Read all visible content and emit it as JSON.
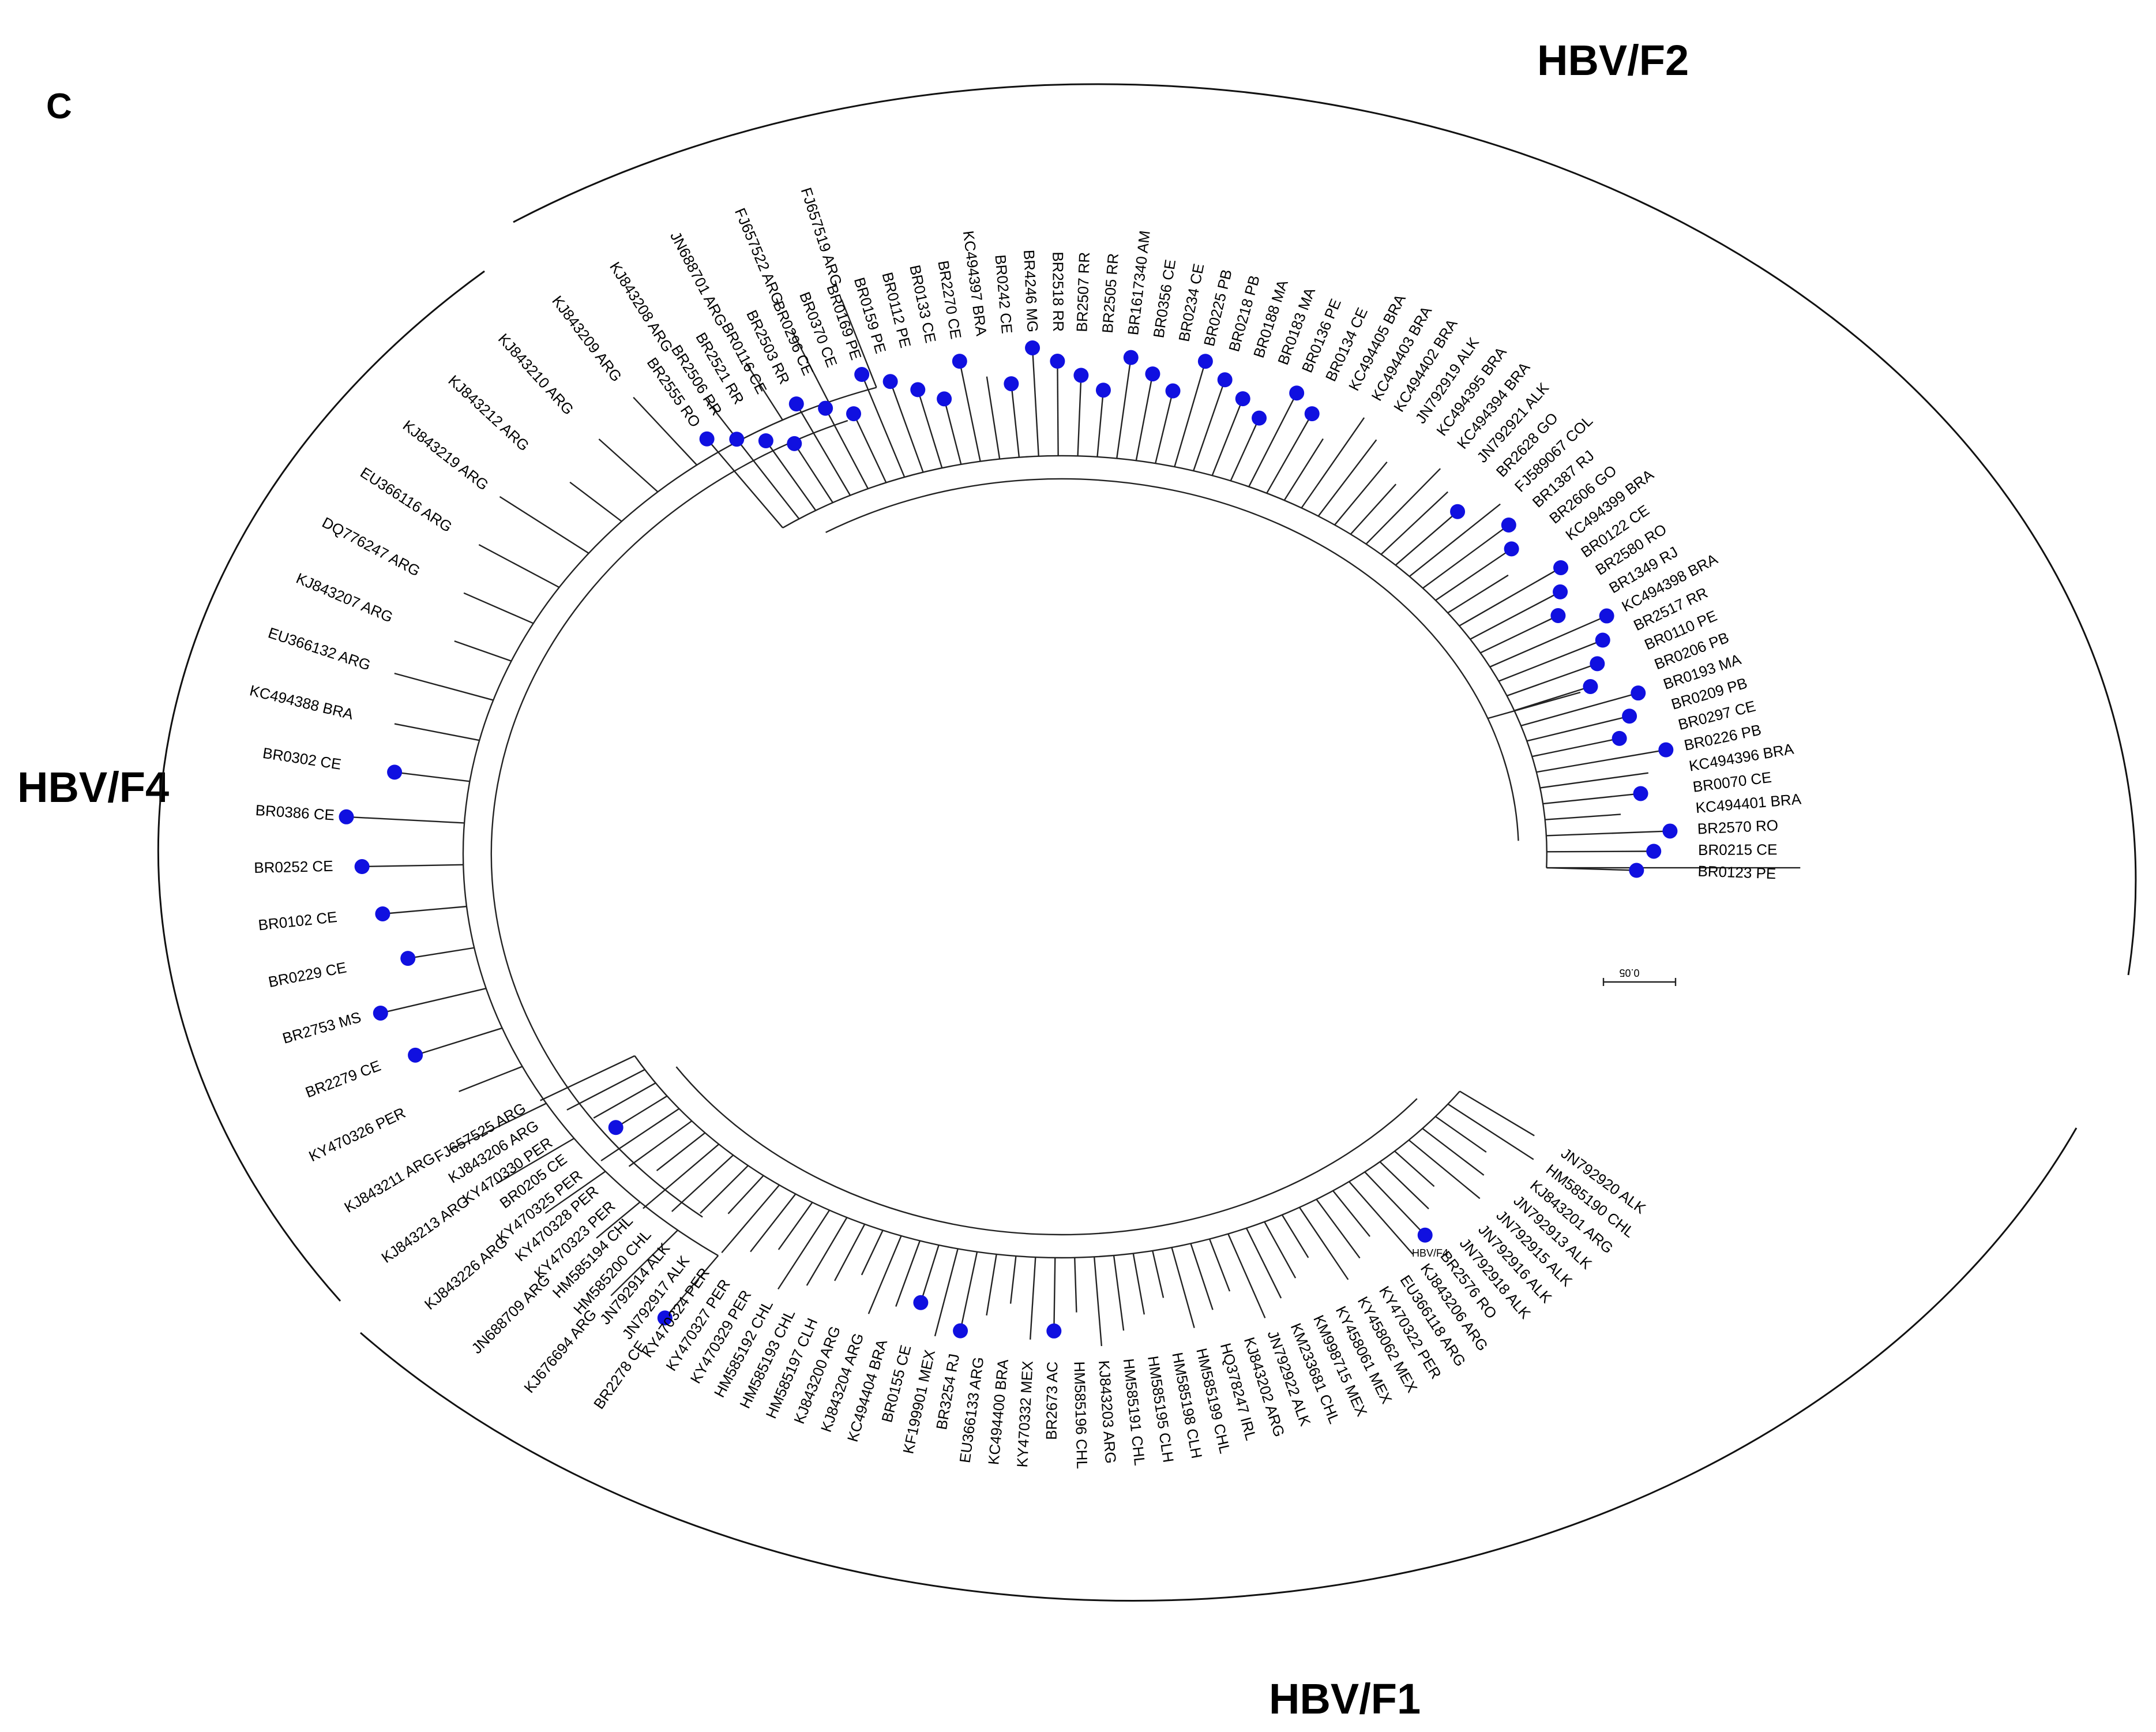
{
  "figure": {
    "panel_letter": "C",
    "scale_bar_label": "0.05",
    "marker_color": "#1010e0",
    "line_color": "#222222"
  },
  "clades": [
    {
      "id": "F2",
      "title": "HBV/F2"
    },
    {
      "id": "F4",
      "title": "HBV/F4"
    },
    {
      "id": "F1",
      "title": "HBV/F1"
    }
  ],
  "tree": {
    "f2": [
      {
        "label": "BR2555 RO",
        "marked": true
      },
      {
        "label": "BR2506 RR",
        "marked": true
      },
      {
        "label": "BR2521 RR",
        "marked": true
      },
      {
        "label": "BR0116 CE",
        "marked": true
      },
      {
        "label": "BR2503 RR",
        "marked": true
      },
      {
        "label": "BR0296 CE",
        "marked": true
      },
      {
        "label": "BR0370 CE",
        "marked": true
      },
      {
        "label": "BR0169 PE",
        "marked": true
      },
      {
        "label": "BR0159 PE",
        "marked": true
      },
      {
        "label": "BR0112 PE",
        "marked": true
      },
      {
        "label": "BR0133 CE",
        "marked": true
      },
      {
        "label": "BR2270 CE",
        "marked": true
      },
      {
        "label": "KC494397 BRA",
        "marked": false
      },
      {
        "label": "BR0242 CE",
        "marked": true
      },
      {
        "label": "BR4246 MG",
        "marked": true
      },
      {
        "label": "BR2518 RR",
        "marked": true
      },
      {
        "label": "BR2507 RR",
        "marked": true
      },
      {
        "label": "BR2505 RR",
        "marked": true
      },
      {
        "label": "BR1617340 AM",
        "marked": true
      },
      {
        "label": "BR0356 CE",
        "marked": true
      },
      {
        "label": "BR0234 CE",
        "marked": true
      },
      {
        "label": "BR0225 PB",
        "marked": true
      },
      {
        "label": "BR0218 PB",
        "marked": true
      },
      {
        "label": "BR0188 MA",
        "marked": true
      },
      {
        "label": "BR0183 MA",
        "marked": true
      },
      {
        "label": "BR0136 PE",
        "marked": true
      },
      {
        "label": "BR0134 CE",
        "marked": true
      },
      {
        "label": "KC494405 BRA",
        "marked": false
      },
      {
        "label": "KC494403 BRA",
        "marked": false
      },
      {
        "label": "KC494402 BRA",
        "marked": false
      },
      {
        "label": "JN792919 ALK",
        "marked": false
      },
      {
        "label": "KC494395 BRA",
        "marked": false
      },
      {
        "label": "KC494394 BRA",
        "marked": false
      },
      {
        "label": "JN792921 ALK",
        "marked": false
      },
      {
        "label": "BR2628 GO",
        "marked": true
      },
      {
        "label": "FJ589067 COL",
        "marked": false
      },
      {
        "label": "BR1387 RJ",
        "marked": true
      },
      {
        "label": "BR2606 GO",
        "marked": true
      },
      {
        "label": "KC494399 BRA",
        "marked": false
      },
      {
        "label": "BR0122 CE",
        "marked": true
      },
      {
        "label": "BR2580 RO",
        "marked": true
      },
      {
        "label": "BR1349 RJ",
        "marked": true
      },
      {
        "label": "KC494398 BRA",
        "marked": true
      },
      {
        "label": "BR2517 RR",
        "marked": true
      },
      {
        "label": "BR0110 PE",
        "marked": true
      },
      {
        "label": "BR0206 PB",
        "marked": true
      },
      {
        "label": "BR0193 MA",
        "marked": true
      },
      {
        "label": "BR0209 PB",
        "marked": true
      },
      {
        "label": "BR0297 CE",
        "marked": true
      },
      {
        "label": "BR0226 PB",
        "marked": true
      },
      {
        "label": "KC494396 BRA",
        "marked": false
      },
      {
        "label": "BR0070 CE",
        "marked": true
      },
      {
        "label": "KC494401 BRA",
        "marked": false
      },
      {
        "label": "BR2570 RO",
        "marked": true
      },
      {
        "label": "BR0215 CE",
        "marked": true
      },
      {
        "label": "BR0123 PE",
        "marked": true
      }
    ],
    "f4": [
      {
        "label": "FJ657519 ARG",
        "marked": false
      },
      {
        "label": "FJ657522 ARG",
        "marked": false
      },
      {
        "label": "JN688701 ARG",
        "marked": false
      },
      {
        "label": "KJ843208 ARG",
        "marked": false
      },
      {
        "label": "KJ843209 ARG",
        "marked": false
      },
      {
        "label": "KJ843210 ARG",
        "marked": false
      },
      {
        "label": "KJ843212 ARG",
        "marked": false
      },
      {
        "label": "KJ843219 ARG",
        "marked": false
      },
      {
        "label": "EU366116 ARG",
        "marked": false
      },
      {
        "label": "DQ776247 ARG",
        "marked": false
      },
      {
        "label": "KJ843207 ARG",
        "marked": false
      },
      {
        "label": "EU366132 ARG",
        "marked": false
      },
      {
        "label": "KC494388 BRA",
        "marked": false
      },
      {
        "label": "BR0302 CE",
        "marked": true
      },
      {
        "label": "BR0386 CE",
        "marked": true
      },
      {
        "label": "BR0252 CE",
        "marked": true
      },
      {
        "label": "BR0102 CE",
        "marked": true
      },
      {
        "label": "BR0229 CE",
        "marked": true
      },
      {
        "label": "BR2753 MS",
        "marked": true
      },
      {
        "label": "BR2279 CE",
        "marked": true
      },
      {
        "label": "KY470326 PER",
        "marked": false
      },
      {
        "label": "KJ843211 ARG",
        "marked": false
      },
      {
        "label": "KJ843213 ARG",
        "marked": false
      },
      {
        "label": "KJ843226 ARG",
        "marked": false
      },
      {
        "label": "JN688709 ARG",
        "marked": false
      },
      {
        "label": "KJ676694 ARG",
        "marked": false
      },
      {
        "label": "BR2278 CE",
        "marked": true
      }
    ],
    "f1": [
      {
        "label": "FJ657525 ARG",
        "marked": false
      },
      {
        "label": "KJ843206 ARG",
        "marked": false
      },
      {
        "label": "KY470330 PER",
        "marked": false
      },
      {
        "label": "BR0205 CE",
        "marked": true
      },
      {
        "label": "KY470325 PER",
        "marked": false
      },
      {
        "label": "KY470328 PER",
        "marked": false
      },
      {
        "label": "KY470323 PER",
        "marked": false
      },
      {
        "label": "HM585194 CHL",
        "marked": false
      },
      {
        "label": "HM585200 CHL",
        "marked": false
      },
      {
        "label": "JN792914 ALK",
        "marked": false
      },
      {
        "label": "JN792917 ALK",
        "marked": false
      },
      {
        "label": "KY470324 PER",
        "marked": false
      },
      {
        "label": "KY470327 PER",
        "marked": false
      },
      {
        "label": "KY470329 PER",
        "marked": false
      },
      {
        "label": "HM585192 CHL",
        "marked": false
      },
      {
        "label": "HM585193 CHL",
        "marked": false
      },
      {
        "label": "HM585197 CLH",
        "marked": false
      },
      {
        "label": "KJ843200 ARG",
        "marked": false
      },
      {
        "label": "KJ843204 ARG",
        "marked": false
      },
      {
        "label": "KC494404 BRA",
        "marked": false
      },
      {
        "label": "BR0155 CE",
        "marked": true
      },
      {
        "label": "KF199901 MEX",
        "marked": false
      },
      {
        "label": "BR3254 RJ",
        "marked": true
      },
      {
        "label": "EU366133 ARG",
        "marked": false
      },
      {
        "label": "KC494400 BRA",
        "marked": false
      },
      {
        "label": "KY470332 MEX",
        "marked": false
      },
      {
        "label": "BR2673 AC",
        "marked": true
      },
      {
        "label": "HM585196 CHL",
        "marked": false
      },
      {
        "label": "KJ843203 ARG",
        "marked": false
      },
      {
        "label": "HM585191 CHL",
        "marked": false
      },
      {
        "label": "HM585195 CLH",
        "marked": false
      },
      {
        "label": "HM585198 CLH",
        "marked": false
      },
      {
        "label": "HM585199 CHL",
        "marked": false
      },
      {
        "label": "HQ378247 IRL",
        "marked": false
      },
      {
        "label": "KJ843202 ARG",
        "marked": false
      },
      {
        "label": "JN792922 ALK",
        "marked": false
      },
      {
        "label": "KM233681 CHL",
        "marked": false
      },
      {
        "label": "KM998715 MEX",
        "marked": false
      },
      {
        "label": "KY458061 MEX",
        "marked": false
      },
      {
        "label": "KY458062 MEX",
        "marked": false
      },
      {
        "label": "KY470322 PER",
        "marked": false
      },
      {
        "label": "EU366118 ARG",
        "marked": false
      },
      {
        "label": "KJ843206 ARG",
        "marked": false
      },
      {
        "label": "BR2576 RO",
        "marked": true
      },
      {
        "label": "JN792918 ALK",
        "marked": false
      },
      {
        "label": "JN792916 ALK",
        "marked": false
      },
      {
        "label": "JN792915 ALK",
        "marked": false
      },
      {
        "label": "JN792913 ALK",
        "marked": false
      },
      {
        "label": "KJ843201 ARG",
        "marked": false
      },
      {
        "label": "HM585190 CHL",
        "marked": false
      },
      {
        "label": "JN792920 ALK",
        "marked": false
      }
    ]
  },
  "inline_label": "HBV/F4"
}
